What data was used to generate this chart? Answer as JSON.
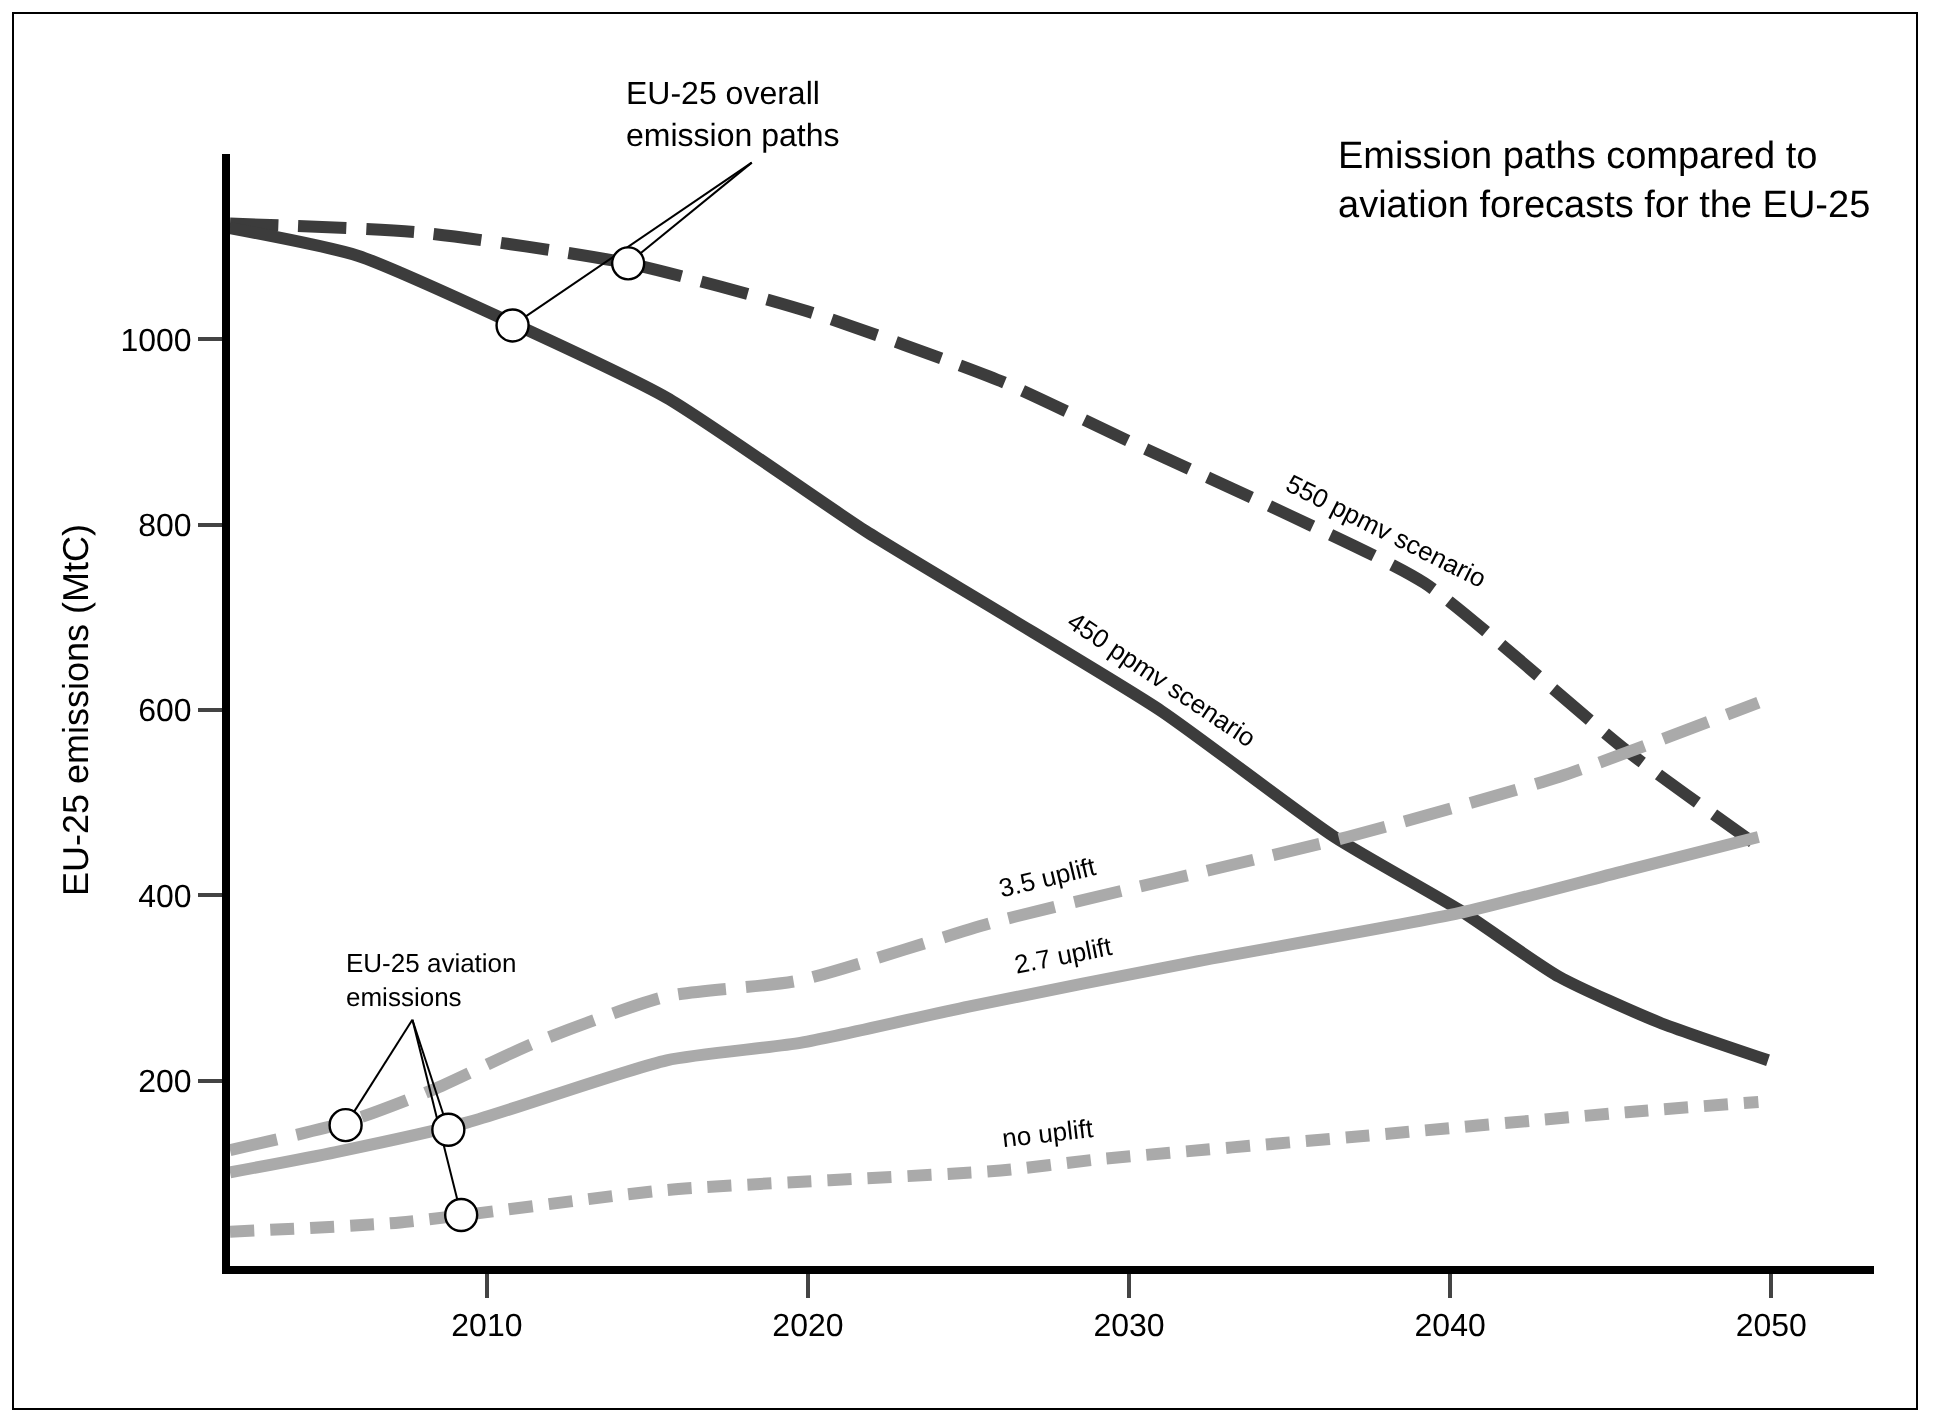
{
  "chart_data": {
    "type": "line",
    "title": "Emission paths compared to aviation forecasts for the EU-25",
    "ylabel": "EU-25 emissions (MtC)",
    "xlim": [
      2002,
      2053.2
    ],
    "xticks": [
      2010,
      2020,
      2030,
      2040,
      2050
    ],
    "ylim": [
      0,
      1200
    ],
    "yticks": [
      200,
      400,
      600,
      800,
      1000
    ],
    "grid": false,
    "legend": false,
    "annotations": [
      {
        "text": "EU-25 overall emission paths",
        "x": 2010.8,
        "y": 1015
      },
      {
        "text": "EU-25 aviation emissions",
        "x": 2005.6,
        "y": 152
      }
    ],
    "series": [
      {
        "name": "550 ppmv scenario",
        "color": "#3c3c3c",
        "line_style": "dashed",
        "x": [
          2002,
          2008,
          2014.4,
          2020,
          2026,
          2030,
          2035,
          2039.2,
          2045.5,
          2049.8
        ],
        "values": [
          1125,
          1115,
          1082,
          1030,
          955,
          890,
          810,
          737,
          556,
          448
        ]
      },
      {
        "name": "450 ppmv scenario",
        "color": "#3c3c3c",
        "line_style": "solid",
        "x": [
          2002,
          2006,
          2010.7,
          2015.6,
          2021.8,
          2026,
          2031,
          2036.4,
          2040.3,
          2043.4,
          2046.5,
          2049.9
        ],
        "values": [
          1120,
          1090,
          1019,
          937,
          793,
          705,
          599,
          463,
          384,
          312,
          263,
          222
        ]
      },
      {
        "name": "3.5 uplift",
        "color": "#aaaaaa",
        "line_style": "dashed",
        "x": [
          2002,
          2005.6,
          2008.3,
          2011.5,
          2015.6,
          2019.7,
          2026,
          2036.8,
          2043.4,
          2049.6
        ],
        "values": [
          125,
          155,
          190,
          241,
          291,
          308,
          373,
          463,
          528,
          608
        ]
      },
      {
        "name": "2.7 uplift",
        "color": "#aaaaaa",
        "line_style": "solid",
        "x": [
          2002,
          2005.3,
          2009.4,
          2015.6,
          2019.8,
          2025,
          2032,
          2040.3,
          2045.5,
          2049.6
        ],
        "values": [
          101,
          123,
          155,
          222,
          241,
          280,
          328,
          381,
          427,
          463
        ]
      },
      {
        "name": "no uplift",
        "color": "#aaaaaa",
        "line_style": "dotted",
        "x": [
          2002,
          2007.3,
          2015.6,
          2026,
          2029,
          2037.2,
          2045.5,
          2049.6
        ],
        "values": [
          37,
          47,
          82,
          103,
          115,
          140,
          166,
          177
        ]
      }
    ]
  }
}
